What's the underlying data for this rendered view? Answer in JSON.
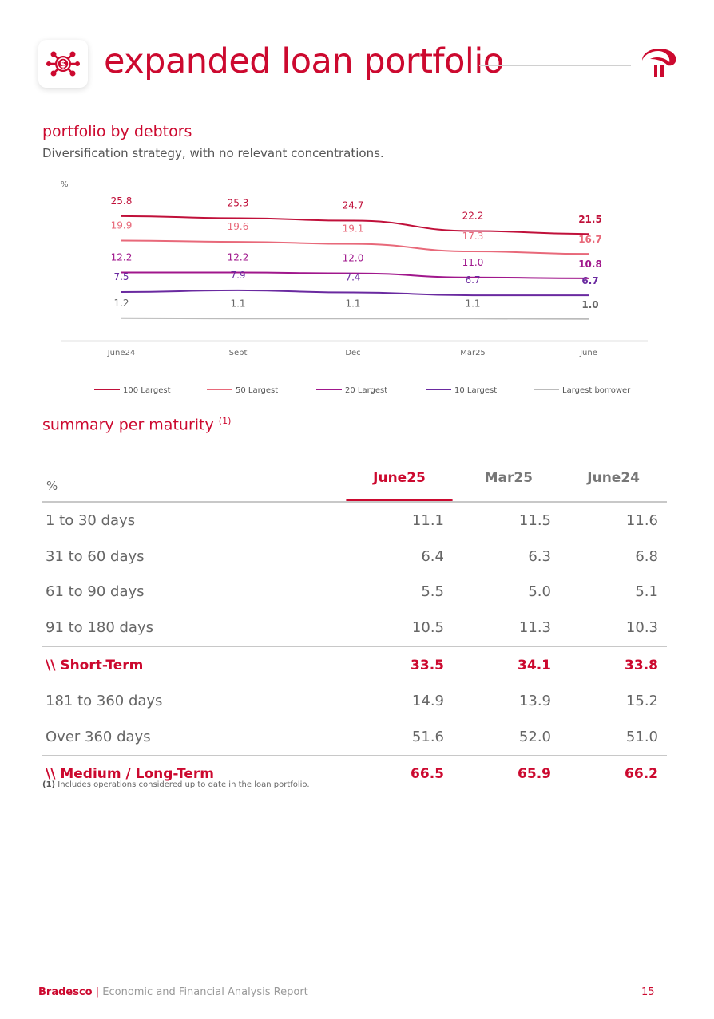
{
  "header": {
    "title": "expanded loan portfolio",
    "icon": "money-network-icon",
    "logo_icon": "bradesco-logo-icon",
    "accent_color": "#cc092f"
  },
  "portfolio_section": {
    "title": "portfolio by debtors",
    "subtitle": "Diversification strategy, with no relevant concentrations."
  },
  "chart_data": {
    "type": "line",
    "ylabel": "%",
    "categories": [
      "June24",
      "Sept",
      "Dec",
      "Mar25",
      "June"
    ],
    "legend_position": "bottom",
    "grid": false,
    "series": [
      {
        "name": "100 Largest",
        "values": [
          25.8,
          25.3,
          24.7,
          22.2,
          21.5
        ],
        "color": "#c0103a"
      },
      {
        "name": "50 Largest",
        "values": [
          19.9,
          19.6,
          19.1,
          17.3,
          16.7
        ],
        "color": "#e8697a"
      },
      {
        "name": "20 Largest",
        "values": [
          12.2,
          12.2,
          12.0,
          11.0,
          10.8
        ],
        "color": "#a0178c"
      },
      {
        "name": "10 Largest",
        "values": [
          7.5,
          7.9,
          7.4,
          6.7,
          6.7
        ],
        "color": "#6a2aa0"
      },
      {
        "name": "Largest borrower",
        "values": [
          1.2,
          1.1,
          1.1,
          1.1,
          1.0
        ],
        "color": "#bbbbbb",
        "label_color": "#666666"
      }
    ]
  },
  "maturity_section": {
    "title": "summary per maturity",
    "title_note": "(1)",
    "unit": "%",
    "columns": [
      "June25",
      "Mar25",
      "June24"
    ],
    "rows": [
      {
        "label": "1 to 30 days",
        "values": [
          "11.1",
          "11.5",
          "11.6"
        ],
        "total": false
      },
      {
        "label": "31 to 60 days",
        "values": [
          "6.4",
          "6.3",
          "6.8"
        ],
        "total": false
      },
      {
        "label": "61 to 90 days",
        "values": [
          "5.5",
          "5.0",
          "5.1"
        ],
        "total": false
      },
      {
        "label": "91 to 180 days",
        "values": [
          "10.5",
          "11.3",
          "10.3"
        ],
        "total": false
      },
      {
        "label": "\\\\ Short-Term",
        "values": [
          "33.5",
          "34.1",
          "33.8"
        ],
        "total": true
      },
      {
        "label": "181 to 360 days",
        "values": [
          "14.9",
          "13.9",
          "15.2"
        ],
        "total": false
      },
      {
        "label": "Over 360 days",
        "values": [
          "51.6",
          "52.0",
          "51.0"
        ],
        "total": false
      },
      {
        "label": "\\\\ Medium / Long-Term",
        "values": [
          "66.5",
          "65.9",
          "66.2"
        ],
        "total": true
      }
    ],
    "footnote_marker": "(1)",
    "footnote_text": "Includes operations considered up to date in the loan portfolio."
  },
  "footer": {
    "brand": "Bradesco",
    "separator": "|",
    "report_name": "Economic and Financial Analysis Report",
    "page_number": "15"
  }
}
